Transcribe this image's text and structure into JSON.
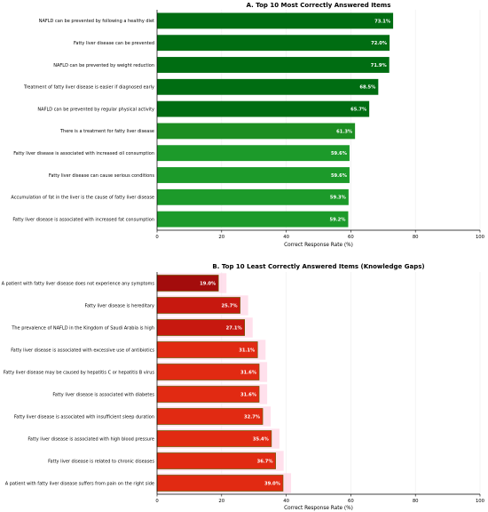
{
  "chart_data": [
    {
      "type": "bar",
      "orientation": "horizontal",
      "title": "A. Top 10 Most Correctly Answered Items",
      "xlabel": "Correct Response Rate (%)",
      "ylabel": "",
      "xlim": [
        0,
        100
      ],
      "xticks": [
        "0",
        "20",
        "40",
        "60",
        "80",
        "100"
      ],
      "grid": "vertical",
      "categories": [
        "NAFLD can be prevented by following a healthy diet",
        "Fatty liver disease can be prevented",
        "NAFLD can be prevented by weight reduction",
        "Treatment of fatty liver disease is easier if diagnosed early",
        "NAFLD can be prevented by regular physical activity",
        "There is a treatment for fatty liver disease",
        "Fatty liver disease is associated with increased oil consumption",
        "Fatty liver disease can cause serious conditions",
        "Accumulation of fat in the liver is the cause of fatty liver disease",
        "Fatty liver disease is associated with increased fat consumption"
      ],
      "values": [
        73.1,
        72.0,
        71.9,
        68.5,
        65.7,
        61.3,
        59.6,
        59.6,
        59.3,
        59.2
      ],
      "value_labels": [
        "73.1%",
        "72.0%",
        "71.9%",
        "68.5%",
        "65.7%",
        "61.3%",
        "59.6%",
        "59.6%",
        "59.3%",
        "59.2%"
      ],
      "colors": [
        "#006d12",
        "#006d12",
        "#006d12",
        "#006d12",
        "#006d12",
        "#1c8e22",
        "#1c9a2a",
        "#1c9a2a",
        "#1c9a2a",
        "#1c9a2a"
      ]
    },
    {
      "type": "bar",
      "orientation": "horizontal",
      "title": "B. Top 10 Least Correctly Answered Items (Knowledge Gaps)",
      "xlabel": "Correct Response Rate (%)",
      "ylabel": "",
      "xlim": [
        0,
        100
      ],
      "xticks": [
        "0",
        "20",
        "40",
        "60",
        "80",
        "100"
      ],
      "grid": "vertical",
      "categories": [
        "A patient with fatty liver disease does not experience any symptoms",
        "Fatty liver disease is hereditary",
        "The prevalence of NAFLD in the Kingdom of Saudi Arabia is high",
        "Fatty liver disease is associated with excessive use of antibiotics",
        "Fatty liver disease may be caused by hepatitis C or hepatitis B virus",
        "Fatty liver disease is associated with diabetes",
        "Fatty liver disease is associated with insufficient sleep duration",
        "Fatty liver disease is associated with high blood pressure",
        "Fatty liver disease is related to chronic diseases",
        "A patient with fatty liver disease suffers from pain on the right side"
      ],
      "values": [
        19.0,
        25.7,
        27.1,
        31.1,
        31.6,
        31.6,
        32.7,
        35.4,
        36.7,
        39.0
      ],
      "value_labels": [
        "19.0%",
        "25.7%",
        "27.1%",
        "31.1%",
        "31.6%",
        "31.6%",
        "32.7%",
        "35.4%",
        "36.7%",
        "39.0%"
      ],
      "colors": [
        "#a30c0c",
        "#c7180f",
        "#c7180f",
        "#e12a12",
        "#e12a12",
        "#e12a12",
        "#e12a12",
        "#e12a12",
        "#e12a12",
        "#e12a12"
      ],
      "highlight_color": "#ffd6e6"
    }
  ]
}
